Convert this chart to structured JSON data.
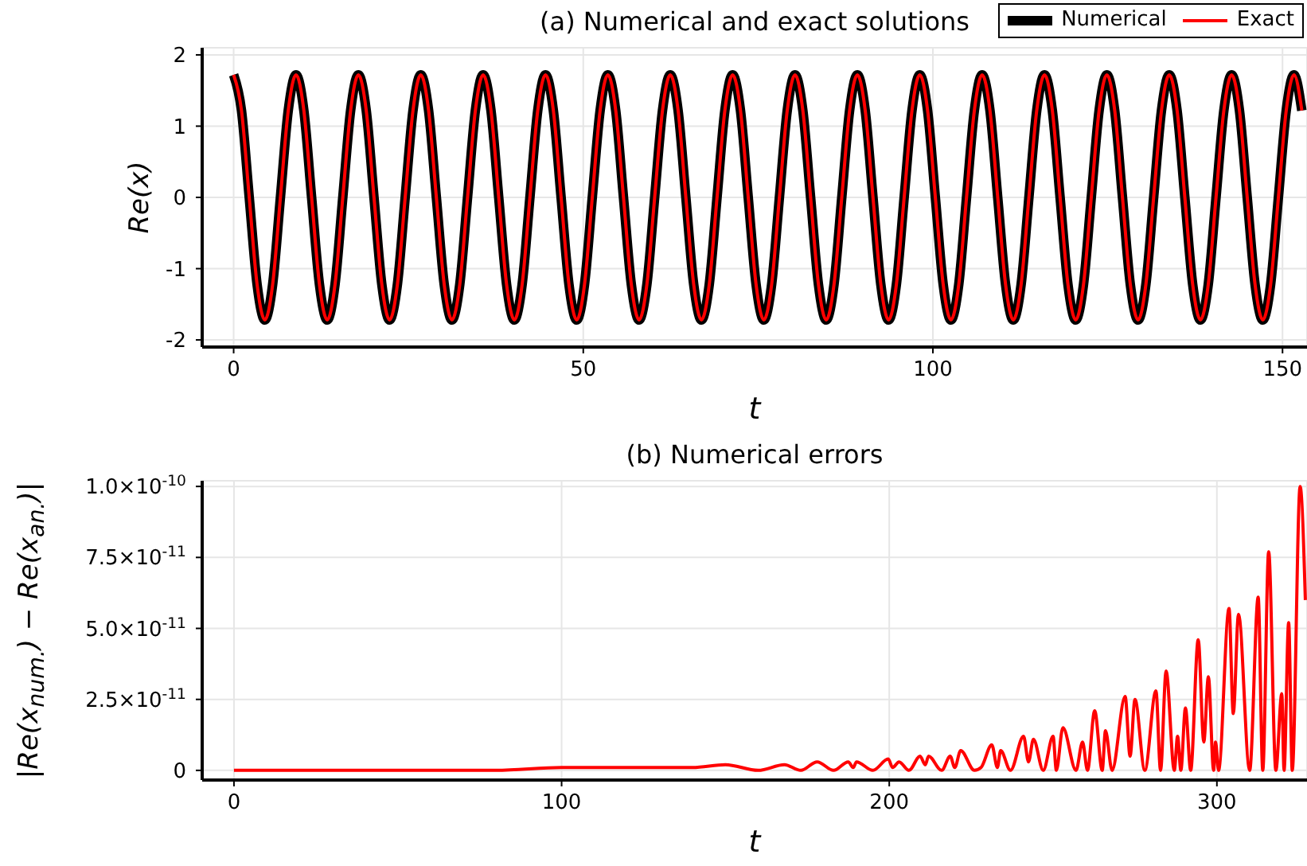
{
  "chart_data": [
    {
      "type": "line",
      "title": "(a) Numerical and exact solutions",
      "xlabel": "t",
      "ylabel": "Re(x)",
      "xlim": [
        -4.5,
        153.5
      ],
      "xticks": [
        0,
        50,
        100,
        150
      ],
      "ylim": [
        -2.1,
        2.1
      ],
      "yticks": [
        -2,
        -1,
        0,
        1,
        2
      ],
      "grid": true,
      "legend": "top right",
      "x": [
        0,
        1.12,
        2.23,
        3.35,
        4.46,
        5.58,
        6.69,
        7.81,
        8.92,
        10.04,
        11.15,
        12.27,
        13.38,
        14.5,
        15.61,
        16.73,
        17.84,
        18.96,
        20.07,
        21.19,
        22.3,
        23.42,
        24.53,
        25.65,
        26.76,
        27.88,
        28.99,
        30.11,
        31.22,
        32.34,
        33.45,
        34.57,
        35.68,
        36.8,
        37.91,
        39.03,
        40.14,
        41.26,
        42.37,
        43.49,
        44.6,
        45.72,
        46.83,
        47.95,
        49.06,
        50.18,
        51.29,
        52.41,
        53.52,
        54.64,
        55.75,
        56.87,
        57.98,
        59.1,
        60.21,
        61.33,
        62.44,
        63.56,
        64.67,
        65.79,
        66.9,
        68.02,
        69.13,
        70.25,
        71.36,
        72.48,
        73.59,
        74.71,
        75.82,
        76.94,
        78.05,
        79.17,
        80.28,
        81.4,
        82.51,
        83.63,
        84.74,
        85.86,
        86.97,
        88.09,
        89.2,
        90.32,
        91.43,
        92.55,
        93.66,
        94.78,
        95.89,
        97.01,
        98.12,
        99.24,
        100.35,
        101.47,
        102.58,
        103.7,
        104.81,
        105.93,
        107.04,
        108.16,
        109.27,
        110.39,
        111.5,
        112.62,
        113.73,
        114.85,
        115.96,
        117.08,
        118.19,
        119.31,
        120.42,
        121.54,
        122.65,
        123.77,
        124.88,
        126,
        127.11,
        128.23,
        129.34,
        130.46,
        131.57,
        132.69,
        133.8,
        134.92,
        136.03,
        137.15,
        138.26,
        139.38,
        140.49,
        141.61,
        142.72,
        143.84,
        144.95,
        146.07,
        147.18,
        148.3,
        149.41,
        150.53,
        151.64,
        152.76
      ],
      "series": [
        {
          "name": "Numerical",
          "color": "#000000",
          "values": [
            1.72,
            1.22,
            0,
            -1.22,
            -1.72,
            -1.22,
            0,
            1.22,
            1.72,
            1.22,
            0,
            -1.22,
            -1.72,
            -1.22,
            0,
            1.22,
            1.72,
            1.22,
            0,
            -1.22,
            -1.72,
            -1.22,
            0,
            1.22,
            1.72,
            1.22,
            0,
            -1.22,
            -1.72,
            -1.22,
            0,
            1.22,
            1.72,
            1.22,
            0,
            -1.22,
            -1.72,
            -1.22,
            0,
            1.22,
            1.72,
            1.22,
            0,
            -1.22,
            -1.72,
            -1.22,
            0,
            1.22,
            1.72,
            1.22,
            0,
            -1.22,
            -1.72,
            -1.22,
            0,
            1.22,
            1.72,
            1.22,
            0,
            -1.22,
            -1.72,
            -1.22,
            0,
            1.22,
            1.72,
            1.22,
            0,
            -1.22,
            -1.72,
            -1.22,
            0,
            1.22,
            1.72,
            1.22,
            0,
            -1.22,
            -1.72,
            -1.22,
            0,
            1.22,
            1.72,
            1.22,
            0,
            -1.22,
            -1.72,
            -1.22,
            0,
            1.22,
            1.72,
            1.22,
            0,
            -1.22,
            -1.72,
            -1.22,
            0,
            1.22,
            1.72,
            1.22,
            0,
            -1.22,
            -1.72,
            -1.22,
            0,
            1.22,
            1.72,
            1.22,
            0,
            -1.22,
            -1.72,
            -1.22,
            0,
            1.22,
            1.72,
            1.22,
            0,
            -1.22,
            -1.72,
            -1.22,
            0,
            1.22,
            1.72,
            1.22,
            0,
            -1.22,
            -1.72,
            -1.22,
            0,
            1.22,
            1.72,
            1.22,
            0,
            -1.22,
            -1.72,
            -1.22,
            0,
            1.22,
            1.72,
            1.22
          ]
        },
        {
          "name": "Exact",
          "color": "#ff0000",
          "values": [
            1.72,
            1.22,
            0,
            -1.22,
            -1.72,
            -1.22,
            0,
            1.22,
            1.72,
            1.22,
            0,
            -1.22,
            -1.72,
            -1.22,
            0,
            1.22,
            1.72,
            1.22,
            0,
            -1.22,
            -1.72,
            -1.22,
            0,
            1.22,
            1.72,
            1.22,
            0,
            -1.22,
            -1.72,
            -1.22,
            0,
            1.22,
            1.72,
            1.22,
            0,
            -1.22,
            -1.72,
            -1.22,
            0,
            1.22,
            1.72,
            1.22,
            0,
            -1.22,
            -1.72,
            -1.22,
            0,
            1.22,
            1.72,
            1.22,
            0,
            -1.22,
            -1.72,
            -1.22,
            0,
            1.22,
            1.72,
            1.22,
            0,
            -1.22,
            -1.72,
            -1.22,
            0,
            1.22,
            1.72,
            1.22,
            0,
            -1.22,
            -1.72,
            -1.22,
            0,
            1.22,
            1.72,
            1.22,
            0,
            -1.22,
            -1.72,
            -1.22,
            0,
            1.22,
            1.72,
            1.22,
            0,
            -1.22,
            -1.72,
            -1.22,
            0,
            1.22,
            1.72,
            1.22,
            0,
            -1.22,
            -1.72,
            -1.22,
            0,
            1.22,
            1.72,
            1.22,
            0,
            -1.22,
            -1.72,
            -1.22,
            0,
            1.22,
            1.72,
            1.22,
            0,
            -1.22,
            -1.72,
            -1.22,
            0,
            1.22,
            1.72,
            1.22,
            0,
            -1.22,
            -1.72,
            -1.22,
            0,
            1.22,
            1.72,
            1.22,
            0,
            -1.22,
            -1.72,
            -1.22,
            0,
            1.22,
            1.72,
            1.22,
            0,
            -1.22,
            -1.72,
            -1.22,
            0,
            1.22,
            1.72,
            1.22
          ]
        }
      ]
    },
    {
      "type": "line",
      "title": "(b) Numerical errors",
      "xlabel": "t",
      "ylabel": "|Re(x$_{num.}$) − Re(x$_{an.}$)|",
      "xlim": [
        -9.7,
        327.5
      ],
      "xticks": [
        0,
        100,
        200,
        300
      ],
      "ylim": [
        -3.4e-12,
        1.02e-10
      ],
      "yticks": [
        0,
        {
          "value": 2.5e-11,
          "label": "2.5×10$^{-11}$"
        },
        {
          "value": 5e-11,
          "label": "5.0×10$^{-11}$"
        },
        {
          "value": 7.5e-11,
          "label": "7.5×10$^{-11}$"
        },
        {
          "value": 1e-10,
          "label": "1.0×10$^{-10}$"
        }
      ],
      "grid": true,
      "x": [
        0,
        40,
        80,
        100,
        120,
        140,
        150,
        160,
        168,
        173,
        178,
        183,
        187.5,
        189,
        190,
        195,
        199.7,
        201,
        203,
        206,
        209.4,
        211,
        212,
        216,
        218.6,
        220,
        221.8,
        226,
        228,
        231.3,
        233,
        234,
        237,
        241,
        242.5,
        244,
        247,
        250,
        251,
        253,
        257,
        259,
        260.5,
        262.7,
        265,
        266,
        268,
        272,
        273.5,
        275,
        278,
        281.4,
        282.8,
        284.5,
        287,
        288,
        289,
        290.4,
        292,
        294.3,
        296,
        297.4,
        299,
        299.6,
        300.5,
        303.7,
        305,
        306.6,
        310,
        312.6,
        314,
        315.8,
        318,
        319.8,
        320.5,
        321.9,
        323,
        325.4,
        327
      ],
      "series": [
        {
          "color": "#ff0000",
          "values": [
            0,
            0,
            0,
            1e-12,
            1e-12,
            1e-12,
            2e-12,
            0,
            2e-12,
            0,
            3e-12,
            0,
            3e-12,
            1e-12,
            3e-12,
            0,
            4e-12,
            1e-12,
            3e-12,
            0,
            5e-12,
            2e-12,
            5e-12,
            0,
            5e-12,
            1e-12,
            7e-12,
            0,
            1e-12,
            9e-12,
            1e-12,
            7e-12,
            0,
            1.2e-11,
            3e-12,
            1.1e-11,
            0,
            1.2e-11,
            0,
            1.5e-11,
            0,
            1e-11,
            0,
            2.1e-11,
            0,
            1.4e-11,
            0,
            2.6e-11,
            5e-12,
            2.5e-11,
            0,
            2.8e-11,
            0,
            3.5e-11,
            0,
            1.2e-11,
            0,
            2.2e-11,
            0,
            4.6e-11,
            1e-11,
            3.3e-11,
            0,
            1e-11,
            0,
            5.7e-11,
            2e-11,
            5.5e-11,
            0,
            6.1e-11,
            0,
            7.7e-11,
            0,
            2.7e-11,
            0,
            5.2e-11,
            0,
            1e-10,
            6e-11
          ]
        }
      ]
    }
  ]
}
